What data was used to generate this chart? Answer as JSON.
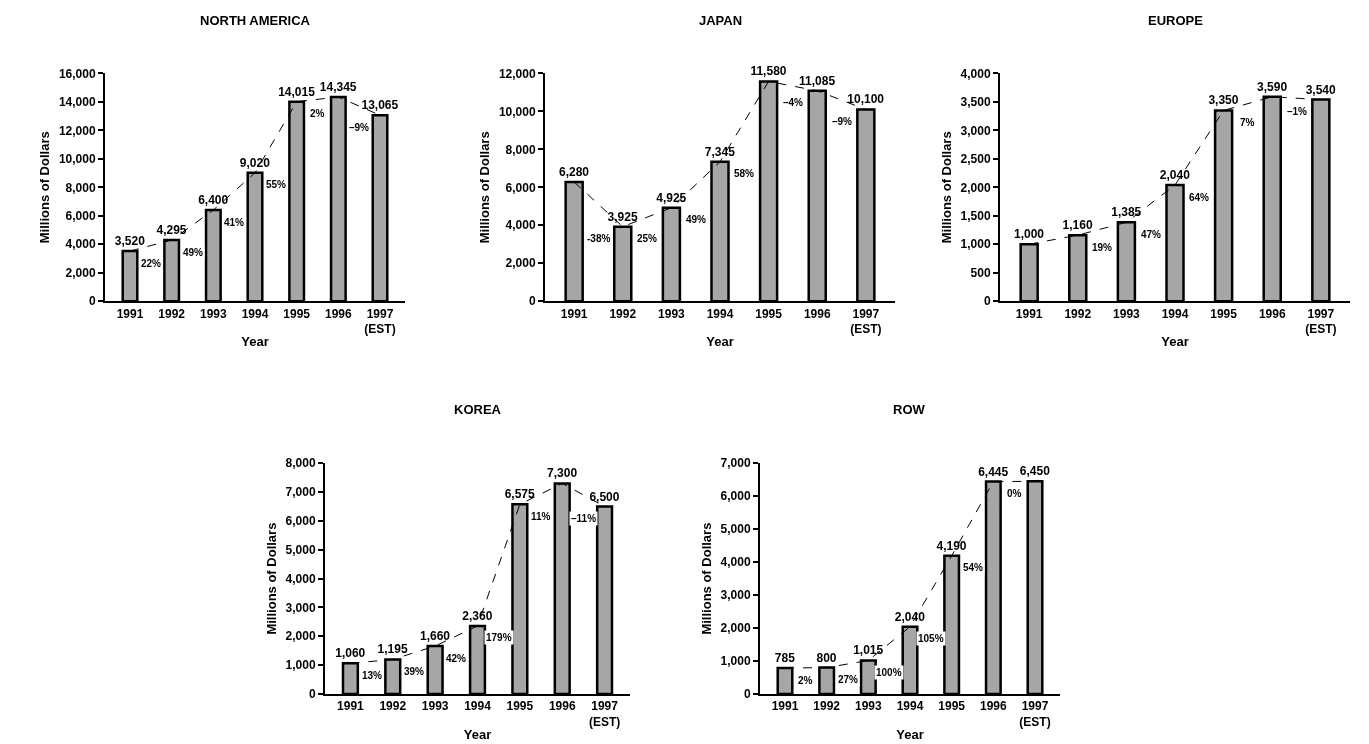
{
  "chart_data": [
    {
      "type": "bar",
      "title": "NORTH AMERICA",
      "xlabel": "Year",
      "ylabel": "Millions of Dollars",
      "categories": [
        "1991",
        "1992",
        "1993",
        "1994",
        "1995",
        "1996",
        "1997\n(EST)"
      ],
      "series": [
        {
          "color": "#a6a6a6",
          "values": [
            3520,
            4295,
            6400,
            9020,
            14015,
            14345,
            13065
          ],
          "value_labels": [
            "3,520",
            "4,295",
            "6,400",
            "9,020",
            "14,015",
            "14,345",
            "13,065"
          ]
        },
        {
          "type": "line",
          "color": "#000000",
          "line_style": "dashed",
          "values": [
            3520,
            4295,
            6400,
            9020,
            14015,
            14345,
            13065
          ]
        }
      ],
      "ylim": [
        0,
        16000
      ],
      "yticks": [
        {
          "value": 0,
          "label": "0"
        },
        {
          "value": 2000,
          "label": "2,000"
        },
        {
          "value": 4000,
          "label": "4,000"
        },
        {
          "value": 6000,
          "label": "6,000"
        },
        {
          "value": 8000,
          "label": "8,000"
        },
        {
          "value": 10000,
          "label": "10,000"
        },
        {
          "value": 12000,
          "label": "12,000"
        },
        {
          "value": 14000,
          "label": "14,000"
        },
        {
          "value": 16000,
          "label": "16,000"
        }
      ],
      "annotations": [
        "22%",
        "49%",
        "41%",
        "55%",
        "2%",
        "–9%"
      ]
    },
    {
      "type": "bar",
      "title": "JAPAN",
      "xlabel": "Year",
      "ylabel": "Millions of Dollars",
      "categories": [
        "1991",
        "1992",
        "1993",
        "1994",
        "1995",
        "1996",
        "1997\n(EST)"
      ],
      "series": [
        {
          "color": "#a6a6a6",
          "values": [
            6280,
            3925,
            4925,
            7345,
            11580,
            11085,
            10100
          ],
          "value_labels": [
            "6,280",
            "3,925",
            "4,925",
            "7,345",
            "11,580",
            "11,085",
            "10,100"
          ]
        },
        {
          "type": "line",
          "color": "#000000",
          "line_style": "dashed",
          "values": [
            6280,
            3925,
            4925,
            7345,
            11580,
            11085,
            10100
          ]
        }
      ],
      "ylim": [
        0,
        12000
      ],
      "yticks": [
        {
          "value": 0,
          "label": "0"
        },
        {
          "value": 2000,
          "label": "2,000"
        },
        {
          "value": 4000,
          "label": "4,000"
        },
        {
          "value": 6000,
          "label": "6,000"
        },
        {
          "value": 8000,
          "label": "8,000"
        },
        {
          "value": 10000,
          "label": "10,000"
        },
        {
          "value": 12000,
          "label": "12,000"
        }
      ],
      "annotations": [
        "-38%",
        "25%",
        "49%",
        "58%",
        "–4%",
        "–9%"
      ]
    },
    {
      "type": "bar",
      "title": "EUROPE",
      "xlabel": "Year",
      "ylabel": "Millions of Dollars",
      "categories": [
        "1991",
        "1992",
        "1993",
        "1994",
        "1995",
        "1996",
        "1997\n(EST)"
      ],
      "series": [
        {
          "color": "#a6a6a6",
          "values": [
            1000,
            1160,
            1385,
            2040,
            3350,
            3590,
            3540
          ],
          "value_labels": [
            "1,000",
            "1,160",
            "1,385",
            "2,040",
            "3,350",
            "3,590",
            "3,540"
          ]
        },
        {
          "type": "line",
          "color": "#000000",
          "line_style": "dashed",
          "values": [
            1000,
            1160,
            1385,
            2040,
            3350,
            3590,
            3540
          ]
        }
      ],
      "ylim": [
        0,
        4000
      ],
      "yticks": [
        {
          "value": 0,
          "label": "0"
        },
        {
          "value": 500,
          "label": "500"
        },
        {
          "value": 1000,
          "label": "1,000"
        },
        {
          "value": 1500,
          "label": "1,500"
        },
        {
          "value": 2000,
          "label": "2,000"
        },
        {
          "value": 2500,
          "label": "2,500"
        },
        {
          "value": 3000,
          "label": "3,000"
        },
        {
          "value": 3500,
          "label": "3,500"
        },
        {
          "value": 4000,
          "label": "4,000"
        }
      ],
      "annotations": [
        "19%",
        "47%",
        "64%",
        "7%",
        "–1%"
      ]
    },
    {
      "type": "bar",
      "title": "KOREA",
      "xlabel": "Year",
      "ylabel": "Millions of Dollars",
      "categories": [
        "1991",
        "1992",
        "1993",
        "1994",
        "1995",
        "1996",
        "1997\n(EST)"
      ],
      "series": [
        {
          "color": "#a6a6a6",
          "values": [
            1060,
            1195,
            1660,
            2360,
            6575,
            7300,
            6500
          ],
          "value_labels": [
            "1,060",
            "1,195",
            "1,660",
            "2,360",
            "6,575",
            "7,300",
            "6,500"
          ]
        },
        {
          "type": "line",
          "color": "#000000",
          "line_style": "dashed",
          "values": [
            1060,
            1195,
            1660,
            2360,
            6575,
            7300,
            6500
          ]
        }
      ],
      "ylim": [
        0,
        8000
      ],
      "yticks": [
        {
          "value": 0,
          "label": "0"
        },
        {
          "value": 1000,
          "label": "1,000"
        },
        {
          "value": 2000,
          "label": "2,000"
        },
        {
          "value": 3000,
          "label": "3,000"
        },
        {
          "value": 4000,
          "label": "4,000"
        },
        {
          "value": 5000,
          "label": "5,000"
        },
        {
          "value": 6000,
          "label": "6,000"
        },
        {
          "value": 7000,
          "label": "7,000"
        },
        {
          "value": 8000,
          "label": "8,000"
        }
      ],
      "annotations": [
        "13%",
        "39%",
        "42%",
        "179%",
        "11%",
        "–11%"
      ]
    },
    {
      "type": "bar",
      "title": "ROW",
      "xlabel": "Year",
      "ylabel": "Millions of Dollars",
      "categories": [
        "1991",
        "1992",
        "1993",
        "1994",
        "1995",
        "1996",
        "1997\n(EST)"
      ],
      "series": [
        {
          "color": "#a6a6a6",
          "values": [
            785,
            800,
            1015,
            2040,
            4190,
            6445,
            6450
          ],
          "value_labels": [
            "785",
            "800",
            "1,015",
            "2,040",
            "4,190",
            "6,445",
            "6,450"
          ]
        },
        {
          "type": "line",
          "color": "#000000",
          "line_style": "dashed",
          "values": [
            785,
            800,
            1015,
            2040,
            4190,
            6445,
            6450
          ]
        }
      ],
      "ylim": [
        0,
        7000
      ],
      "yticks": [
        {
          "value": 0,
          "label": "0"
        },
        {
          "value": 1000,
          "label": "1,000"
        },
        {
          "value": 2000,
          "label": "2,000"
        },
        {
          "value": 3000,
          "label": "3,000"
        },
        {
          "value": 4000,
          "label": "4,000"
        },
        {
          "value": 5000,
          "label": "5,000"
        },
        {
          "value": 6000,
          "label": "6,000"
        },
        {
          "value": 7000,
          "label": "7,000"
        }
      ],
      "annotations": [
        "2%",
        "27%",
        "100%",
        "105%",
        "54%",
        "0%"
      ]
    }
  ]
}
